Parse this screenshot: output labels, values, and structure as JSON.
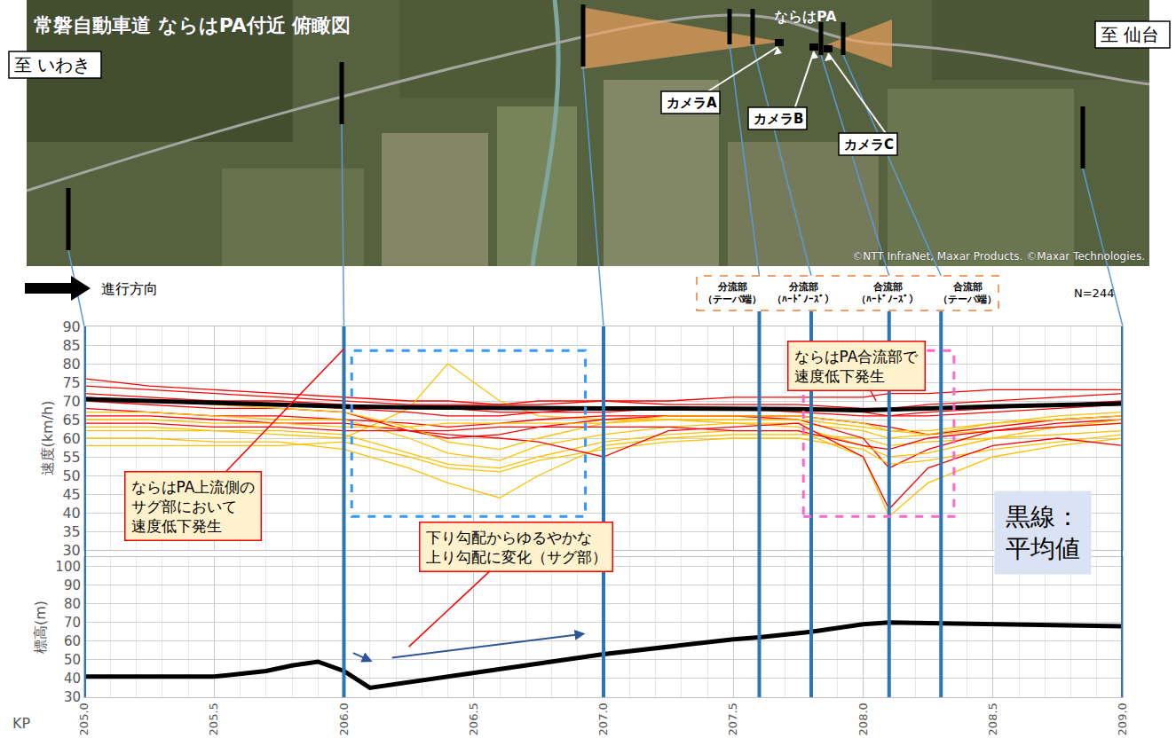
{
  "map": {
    "title": "常磐自動車道 ならはPA付近 俯瞰図",
    "from_label": "至 いわき",
    "to_label": "至 仙台",
    "pa_label": "ならはPA",
    "cameras": [
      "カメラA",
      "カメラB",
      "カメラC"
    ],
    "copyright": "©NTT InfraNet, Maxar Products. ©Maxar Technologies."
  },
  "chart_data": {
    "type": "line",
    "x_label": "KP",
    "y_label": "速度(km/h)",
    "y2_label": "標高(m)",
    "direction_label": "進行方向",
    "n_label": "N=244",
    "mean_note": [
      "黒線：",
      "平均値"
    ],
    "grid": true,
    "xlim": [
      205.0,
      209.0
    ],
    "xticks": [
      {
        "value": 205.0,
        "label": "205.0"
      },
      205.5,
      {
        "value": 206.0,
        "label": "206.0"
      },
      206.5,
      {
        "value": 207.0,
        "label": "207.0"
      },
      207.5,
      {
        "value": 208.0,
        "label": "208.0"
      },
      208.5,
      {
        "value": 209.0,
        "label": "209.0"
      }
    ],
    "ylim": [
      30,
      90
    ],
    "yticks": [
      30,
      35,
      40,
      45,
      50,
      55,
      60,
      65,
      70,
      75,
      80,
      85,
      90
    ],
    "y2lim": [
      30,
      105
    ],
    "y2ticks": [
      30,
      40,
      50,
      60,
      70,
      80,
      90,
      100
    ],
    "x": [
      205.0,
      205.25,
      205.5,
      205.75,
      206.0,
      206.25,
      206.4,
      206.6,
      206.75,
      207.0,
      207.25,
      207.5,
      207.75,
      208.0,
      208.1,
      208.25,
      208.5,
      208.75,
      209.0
    ],
    "series": [
      {
        "color": "#ff0000",
        "values": [
          76,
          74,
          73,
          72,
          71,
          70,
          70,
          69,
          70,
          70,
          70,
          71,
          71,
          71,
          72,
          72,
          73,
          73,
          73
        ]
      },
      {
        "color": "#ffc000",
        "values": [
          62,
          62,
          62,
          61,
          60,
          68,
          80,
          70,
          66,
          65,
          65,
          64,
          64,
          62,
          60,
          61,
          62,
          63,
          64
        ]
      },
      {
        "color": "#ff0000",
        "values": [
          72,
          71,
          70,
          69,
          68,
          67,
          66,
          66,
          67,
          68,
          68,
          68,
          67,
          66,
          66,
          67,
          68,
          69,
          70
        ]
      },
      {
        "color": "#ffc000",
        "values": [
          60,
          60,
          59,
          59,
          57,
          52,
          48,
          44,
          50,
          58,
          60,
          61,
          61,
          60,
          58,
          59,
          60,
          61,
          62
        ]
      },
      {
        "color": "#ff0000",
        "values": [
          68,
          67,
          66,
          66,
          65,
          64,
          63,
          64,
          65,
          66,
          66,
          66,
          65,
          60,
          52,
          57,
          62,
          64,
          65
        ]
      },
      {
        "color": "#ffc000",
        "values": [
          63,
          63,
          62,
          62,
          61,
          56,
          53,
          52,
          55,
          59,
          61,
          62,
          62,
          55,
          39,
          48,
          55,
          58,
          60
        ]
      },
      {
        "color": "#ff0000",
        "values": [
          74,
          73,
          72,
          71,
          70,
          69,
          69,
          69,
          69,
          70,
          69,
          69,
          69,
          68,
          68,
          69,
          70,
          71,
          72
        ]
      },
      {
        "color": "#ffc000",
        "values": [
          58,
          58,
          58,
          58,
          59,
          55,
          52,
          51,
          54,
          57,
          59,
          60,
          60,
          57,
          53,
          54,
          57,
          59,
          61
        ]
      },
      {
        "color": "#ff0000",
        "values": [
          70,
          69,
          68,
          68,
          67,
          62,
          60,
          61,
          63,
          65,
          66,
          66,
          66,
          64,
          63,
          61,
          63,
          65,
          66
        ]
      },
      {
        "color": "#ffc000",
        "values": [
          67,
          67,
          66,
          65,
          65,
          60,
          56,
          54,
          58,
          61,
          63,
          64,
          63,
          58,
          55,
          56,
          60,
          63,
          65
        ]
      },
      {
        "color": "#ff0000",
        "values": [
          66,
          66,
          65,
          64,
          64,
          62,
          61,
          60,
          59,
          55,
          62,
          63,
          64,
          55,
          41,
          52,
          58,
          60,
          58
        ]
      },
      {
        "color": "#ffc000",
        "values": [
          65,
          65,
          64,
          64,
          63,
          63,
          64,
          64,
          64,
          64,
          65,
          65,
          65,
          63,
          62,
          62,
          64,
          65,
          66
        ]
      },
      {
        "color": "#ff0000",
        "values": [
          71,
          70,
          70,
          70,
          69,
          68,
          68,
          67,
          67,
          67,
          68,
          68,
          68,
          67,
          66,
          66,
          67,
          68,
          69
        ]
      },
      {
        "color": "#ffc000",
        "values": [
          70,
          70,
          69,
          68,
          67,
          63,
          59,
          57,
          60,
          64,
          66,
          66,
          66,
          64,
          62,
          61,
          64,
          66,
          67
        ]
      },
      {
        "color": "#ff0000",
        "values": [
          64,
          64,
          63,
          63,
          62,
          62,
          62,
          63,
          63,
          63,
          63,
          62,
          62,
          58,
          57,
          60,
          62,
          63,
          64
        ]
      },
      {
        "color": "#000000",
        "line_style": "bold",
        "values": [
          70.5,
          70,
          69.5,
          69,
          68.5,
          68.3,
          68.2,
          68.1,
          68,
          68,
          68,
          68,
          67.8,
          67.5,
          67.6,
          68,
          68.5,
          69,
          69.3
        ]
      }
    ],
    "elevation": {
      "axis": "y2",
      "color": "#000000",
      "line_style": "bold",
      "x": [
        205.0,
        205.5,
        205.7,
        205.8,
        205.9,
        206.0,
        206.1,
        206.5,
        207.0,
        207.5,
        207.6,
        207.8,
        208.0,
        208.1,
        208.5,
        209.0
      ],
      "values": [
        41,
        41,
        44,
        47,
        49,
        44,
        35,
        43,
        53,
        61,
        62,
        65,
        69,
        70,
        69,
        68
      ]
    },
    "reference_lines": [
      {
        "x": 205.0
      },
      {
        "x": 206.0
      },
      {
        "x": 207.0
      },
      {
        "x": 207.6,
        "label": "分流部（テーパ端）"
      },
      {
        "x": 207.8,
        "label": "分流部（ﾊｰﾄﾞﾉｰｽﾞ）"
      },
      {
        "x": 208.1,
        "label": "合流部（ﾊｰﾄﾞﾉｰｽﾞ）"
      },
      {
        "x": 208.3,
        "label": "合流部（テーパ端）"
      },
      {
        "x": 209.0
      }
    ],
    "regions": [
      {
        "x": [
          206.03,
          206.93
        ],
        "y": [
          39,
          83.5
        ],
        "color": "#3399ff"
      },
      {
        "x": [
          207.77,
          208.35
        ],
        "y": [
          39,
          83.5
        ],
        "color": "#ff66cc"
      }
    ],
    "callouts": [
      {
        "lines": [
          "ならはPA上流側の",
          "サグ部において",
          "速度低下発生"
        ],
        "x": 206.0,
        "y": 84,
        "axis": "y"
      },
      {
        "lines": [
          "ならはPA合流部で",
          "速度低下発生"
        ],
        "x": 208.05,
        "y": 70,
        "axis": "y"
      },
      {
        "lines": [
          "下り勾配からゆるやかな",
          "上り勾配に変化（サグ部）"
        ],
        "x": 206.25,
        "y": 57,
        "axis": "y2",
        "arrows": [
          {
            "from": [
              206.03,
              54
            ],
            "to": [
              206.11,
              49
            ]
          },
          {
            "from": [
              206.18,
              51
            ],
            "to": [
              206.93,
              64
            ]
          }
        ]
      }
    ]
  }
}
